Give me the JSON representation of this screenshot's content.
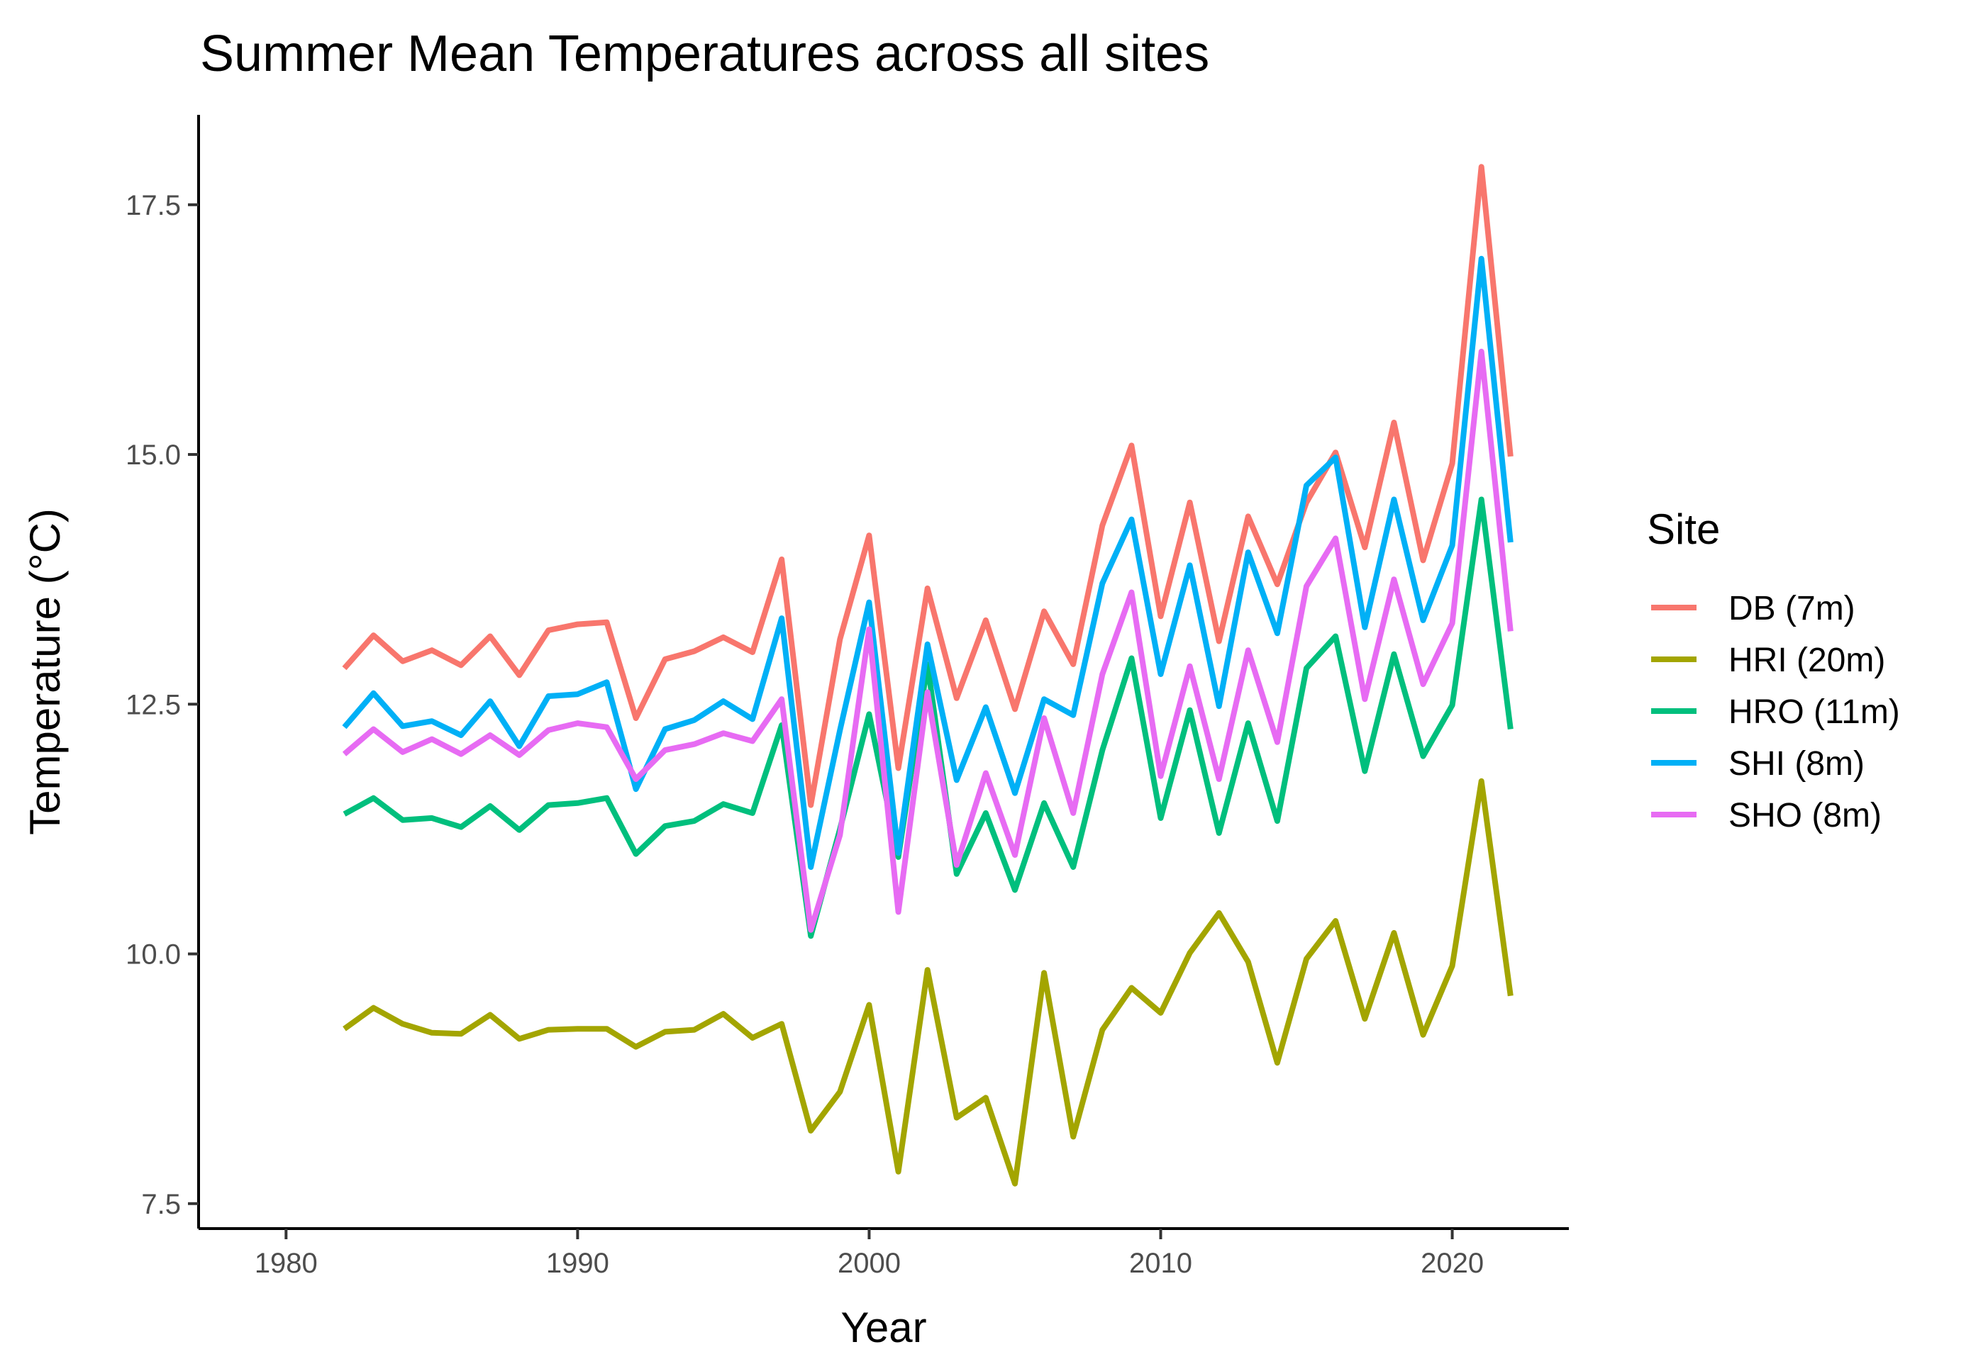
{
  "chart_data": {
    "type": "line",
    "title": "Summer Mean Temperatures across all sites",
    "xlabel": "Year",
    "ylabel": "Temperature (°C)",
    "xlim": [
      1977,
      2024
    ],
    "ylim": [
      7.25,
      18.4
    ],
    "x_ticks": [
      1980,
      1990,
      2000,
      2010,
      2020
    ],
    "y_ticks": [
      7.5,
      10.0,
      12.5,
      15.0,
      17.5
    ],
    "y_tick_labels": [
      "7.5",
      "10.0",
      "12.5",
      "15.0",
      "17.5"
    ],
    "grid": false,
    "legend": {
      "title": "Site",
      "position": "right"
    },
    "x": [
      1982,
      1983,
      1984,
      1985,
      1986,
      1987,
      1988,
      1989,
      1990,
      1991,
      1992,
      1993,
      1994,
      1995,
      1996,
      1997,
      1998,
      1999,
      2000,
      2001,
      2002,
      2003,
      2004,
      2005,
      2006,
      2007,
      2008,
      2009,
      2010,
      2011,
      2012,
      2013,
      2014,
      2015,
      2016,
      2017,
      2018,
      2019,
      2020,
      2021,
      2022
    ],
    "series": [
      {
        "name": "DB (7m)",
        "color": "#F8766D",
        "values": [
          12.86,
          13.19,
          12.93,
          13.04,
          12.89,
          13.18,
          12.79,
          13.24,
          13.3,
          13.32,
          12.36,
          12.95,
          13.03,
          13.17,
          13.02,
          13.95,
          11.49,
          13.15,
          14.19,
          11.86,
          13.66,
          12.56,
          13.34,
          12.45,
          13.43,
          12.9,
          14.29,
          15.09,
          13.38,
          14.52,
          13.13,
          14.38,
          13.7,
          14.52,
          15.02,
          14.07,
          15.32,
          13.94,
          14.91,
          17.88,
          14.98
        ]
      },
      {
        "name": "HRI (20m)",
        "color": "#A3A500",
        "values": [
          9.25,
          9.46,
          9.3,
          9.21,
          9.2,
          9.39,
          9.15,
          9.24,
          9.25,
          9.25,
          9.07,
          9.22,
          9.24,
          9.4,
          9.16,
          9.3,
          8.23,
          8.62,
          9.49,
          7.82,
          9.84,
          8.36,
          8.56,
          7.7,
          9.81,
          8.17,
          9.24,
          9.66,
          9.41,
          10.01,
          10.41,
          9.92,
          8.91,
          9.95,
          10.33,
          9.35,
          10.21,
          9.19,
          9.88,
          11.73,
          9.58
        ]
      },
      {
        "name": "HRO (11m)",
        "color": "#00BF7D",
        "values": [
          11.4,
          11.56,
          11.34,
          11.36,
          11.27,
          11.48,
          11.24,
          11.49,
          11.51,
          11.56,
          11.0,
          11.28,
          11.33,
          11.5,
          11.41,
          12.29,
          10.18,
          11.25,
          12.4,
          10.97,
          12.9,
          10.8,
          11.41,
          10.64,
          11.51,
          10.87,
          12.04,
          12.96,
          11.36,
          12.44,
          11.21,
          12.31,
          11.33,
          12.86,
          13.18,
          11.83,
          13.0,
          11.98,
          12.49,
          14.55,
          12.25
        ]
      },
      {
        "name": "SHI (8m)",
        "color": "#00B0F6",
        "values": [
          12.27,
          12.61,
          12.28,
          12.33,
          12.19,
          12.53,
          12.08,
          12.58,
          12.6,
          12.72,
          11.65,
          12.25,
          12.34,
          12.53,
          12.35,
          13.36,
          10.87,
          12.24,
          13.52,
          11.01,
          13.1,
          11.74,
          12.47,
          11.61,
          12.55,
          12.39,
          13.71,
          14.35,
          12.8,
          13.89,
          12.48,
          14.02,
          13.21,
          14.69,
          14.97,
          13.27,
          14.55,
          13.34,
          14.09,
          16.96,
          14.12
        ]
      },
      {
        "name": "SHO (8m)",
        "color": "#E76BF3",
        "values": [
          12.0,
          12.25,
          12.02,
          12.15,
          12.0,
          12.19,
          11.99,
          12.24,
          12.31,
          12.27,
          11.75,
          12.04,
          12.1,
          12.21,
          12.13,
          12.55,
          10.24,
          11.19,
          13.25,
          10.42,
          12.62,
          10.89,
          11.81,
          10.99,
          12.36,
          11.41,
          12.8,
          13.62,
          11.78,
          12.88,
          11.75,
          13.04,
          12.12,
          13.68,
          14.16,
          12.55,
          13.75,
          12.7,
          13.31,
          16.03,
          13.23
        ]
      }
    ]
  }
}
